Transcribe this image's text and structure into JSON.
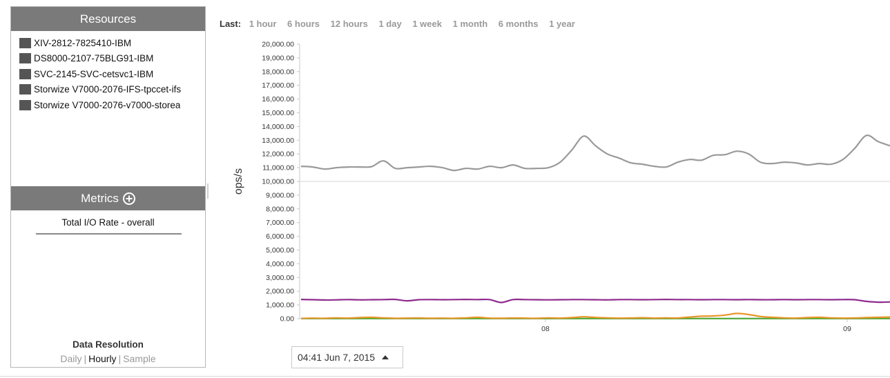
{
  "resources": {
    "title": "Resources",
    "items": [
      {
        "label": "XIV-2812-7825410-IBM",
        "color": "#555555"
      },
      {
        "label": "DS8000-2107-75BLG91-IBM",
        "color": "#555555"
      },
      {
        "label": "SVC-2145-SVC-cetsvc1-IBM",
        "color": "#555555"
      },
      {
        "label": "Storwize V7000-2076-IFS-tpccet-ifs",
        "color": "#555555"
      },
      {
        "label": "Storwize V7000-2076-v7000-storea",
        "color": "#555555"
      }
    ]
  },
  "metrics": {
    "title": "Metrics",
    "items": [
      {
        "label": "Total I/O Rate - overall"
      }
    ]
  },
  "resolution": {
    "title": "Data Resolution",
    "options": [
      "Daily",
      "Hourly",
      "Sample"
    ],
    "selected": "Hourly"
  },
  "time_range": {
    "label": "Last:",
    "options": [
      "1 hour",
      "6 hours",
      "12 hours",
      "1 day",
      "1 week",
      "1 month",
      "6 months",
      "1 year"
    ]
  },
  "date_picker": {
    "value": "04:41 Jun 7, 2015"
  },
  "chart_data": {
    "type": "line",
    "ylabel": "ops/s",
    "ylim": [
      0,
      20000
    ],
    "y_ticks": [
      "0.00",
      "1,000.00",
      "2,000.00",
      "3,000.00",
      "4,000.00",
      "5,000.00",
      "6,000.00",
      "7,000.00",
      "8,000.00",
      "9,000.00",
      "10,000.00",
      "11,000.00",
      "12,000.00",
      "13,000.00",
      "14,000.00",
      "15,000.00",
      "16,000.00",
      "17,000.00",
      "18,000.00",
      "19,000.00",
      "20,000.00"
    ],
    "x_tick_labels": [
      "08",
      "09"
    ],
    "series": [
      {
        "color": "#999999",
        "values": [
          11100,
          11050,
          10900,
          11000,
          11050,
          11050,
          11080,
          11500,
          10950,
          11000,
          11050,
          11100,
          11000,
          10800,
          10950,
          10900,
          11100,
          11000,
          11200,
          10950,
          10950,
          11000,
          11400,
          12300,
          13300,
          12600,
          12000,
          11700,
          11350,
          11250,
          11100,
          11050,
          11400,
          11600,
          11550,
          11900,
          11950,
          12200,
          12000,
          11400,
          11300,
          11400,
          11350,
          11200,
          11300,
          11250,
          11600,
          12400,
          13350,
          12900,
          12600
        ]
      },
      {
        "color": "#8e2a8e",
        "values": [
          1400,
          1380,
          1360,
          1370,
          1390,
          1370,
          1380,
          1390,
          1400,
          1300,
          1380,
          1390,
          1380,
          1390,
          1400,
          1390,
          1390,
          1180,
          1390,
          1390,
          1380,
          1370,
          1380,
          1390,
          1390,
          1380,
          1370,
          1390,
          1390,
          1380,
          1390,
          1400,
          1390,
          1390,
          1380,
          1390,
          1390,
          1380,
          1390,
          1380,
          1380,
          1390,
          1380,
          1390,
          1390,
          1380,
          1390,
          1380,
          1260,
          1200,
          1220
        ]
      },
      {
        "color": "#e8962a",
        "values": [
          20,
          40,
          30,
          60,
          40,
          80,
          100,
          60,
          30,
          40,
          50,
          30,
          40,
          30,
          60,
          100,
          40,
          30,
          50,
          40,
          30,
          60,
          40,
          80,
          140,
          90,
          60,
          40,
          50,
          70,
          40,
          60,
          50,
          120,
          180,
          200,
          260,
          380,
          300,
          160,
          100,
          60,
          40,
          80,
          100,
          60,
          40,
          50,
          80,
          100,
          120
        ]
      },
      {
        "color": "#55aa33",
        "values": [
          10,
          10,
          10,
          10,
          10,
          10,
          10,
          10,
          10,
          10,
          10,
          10,
          10,
          10,
          10,
          10,
          10,
          10,
          10,
          10,
          10,
          10,
          10,
          10,
          10,
          10,
          10,
          10,
          10,
          10,
          10,
          10,
          10,
          10,
          10,
          10,
          10,
          10,
          10,
          10,
          10,
          10,
          10,
          10,
          10,
          10,
          10,
          10,
          10,
          10,
          10
        ]
      },
      {
        "color": "#a0c6e8",
        "values": [
          5,
          5,
          5,
          5,
          5,
          5,
          5,
          5,
          5,
          5,
          5,
          5,
          5,
          5,
          5,
          5,
          5,
          5,
          5,
          5,
          5,
          5,
          5,
          5,
          5,
          5,
          5,
          5,
          5,
          5,
          5,
          5,
          5,
          5,
          5,
          5,
          5,
          5,
          5,
          5,
          5,
          5,
          5,
          5,
          5,
          5,
          5,
          5,
          5,
          5,
          5
        ]
      }
    ]
  }
}
